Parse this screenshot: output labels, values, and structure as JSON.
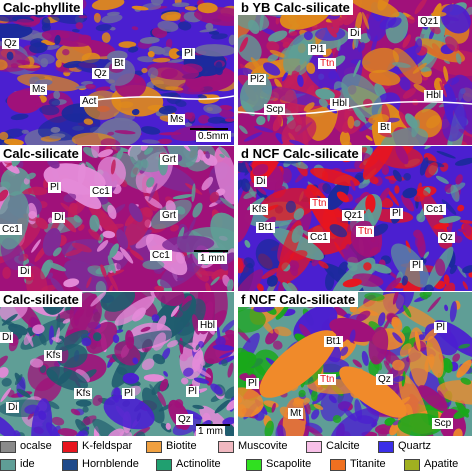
{
  "panels": [
    {
      "id": "a",
      "title": "Calc-phyllite",
      "scale": "0.5mm",
      "labels": [
        {
          "text": "Qz",
          "color": "black"
        },
        {
          "text": "Bt",
          "color": "black"
        },
        {
          "text": "Pl",
          "color": "black"
        },
        {
          "text": "Qz",
          "color": "black"
        },
        {
          "text": "Ms",
          "color": "black"
        },
        {
          "text": "Act",
          "color": "black"
        },
        {
          "text": "Ms",
          "color": "black"
        }
      ],
      "colors": [
        "#4b1fd0",
        "#a0117a",
        "#e08a1a",
        "#1b2a9c",
        "#6e6e9e"
      ]
    },
    {
      "id": "b",
      "title": "YB Calc-silicate",
      "scale": "",
      "labels": [
        {
          "text": "Qz1",
          "color": "black"
        },
        {
          "text": "Di",
          "color": "black"
        },
        {
          "text": "Pl1",
          "color": "black"
        },
        {
          "text": "Ttn",
          "color": "red"
        },
        {
          "text": "Pl2",
          "color": "black"
        },
        {
          "text": "Scp",
          "color": "black"
        },
        {
          "text": "Hbl",
          "color": "black"
        },
        {
          "text": "Hbl",
          "color": "black"
        },
        {
          "text": "Bt",
          "color": "black"
        }
      ],
      "colors": [
        "#a0117a",
        "#5f9e96",
        "#4b1fd0",
        "#e08a1a",
        "#c21e5c"
      ]
    },
    {
      "id": "c",
      "title": "Calc-silicate",
      "scale": "1 mm",
      "labels": [
        {
          "text": "Grt",
          "color": "black"
        },
        {
          "text": "Pl",
          "color": "black"
        },
        {
          "text": "Cc1",
          "color": "black"
        },
        {
          "text": "Di",
          "color": "black"
        },
        {
          "text": "Grt",
          "color": "black"
        },
        {
          "text": "Cc1",
          "color": "black"
        },
        {
          "text": "Cc1",
          "color": "black"
        },
        {
          "text": "Di",
          "color": "black"
        }
      ],
      "colors": [
        "#a0117a",
        "#5f9e96",
        "#c21e5c",
        "#e48ad8",
        "#7e2a96"
      ]
    },
    {
      "id": "d",
      "title": "NCF Calc-silicate",
      "scale": "",
      "labels": [
        {
          "text": "Di",
          "color": "black"
        },
        {
          "text": "Kfs",
          "color": "black"
        },
        {
          "text": "Ttn",
          "color": "red"
        },
        {
          "text": "Qz1",
          "color": "black"
        },
        {
          "text": "Pl",
          "color": "black"
        },
        {
          "text": "Cc1",
          "color": "black"
        },
        {
          "text": "Bt1",
          "color": "black"
        },
        {
          "text": "Cc1",
          "color": "black"
        },
        {
          "text": "Ttn",
          "color": "red"
        },
        {
          "text": "Qz",
          "color": "black"
        },
        {
          "text": "Pl",
          "color": "black"
        }
      ],
      "colors": [
        "#4b1fd0",
        "#a0117a",
        "#5f9e96",
        "#e8151e",
        "#1b2a9c"
      ]
    },
    {
      "id": "e",
      "title": "Calc-silicate",
      "scale": "1 mm",
      "labels": [
        {
          "text": "Di",
          "color": "black"
        },
        {
          "text": "Hbl",
          "color": "black"
        },
        {
          "text": "Kfs",
          "color": "black"
        },
        {
          "text": "Kfs",
          "color": "black"
        },
        {
          "text": "Pl",
          "color": "black"
        },
        {
          "text": "Di",
          "color": "black"
        },
        {
          "text": "Pl",
          "color": "black"
        },
        {
          "text": "Qz",
          "color": "black"
        }
      ],
      "colors": [
        "#5f9e96",
        "#a0117a",
        "#1f5c6e",
        "#4b1fd0",
        "#e48ad8"
      ]
    },
    {
      "id": "f",
      "title": "NCF Calc-silicate",
      "scale": "",
      "labels": [
        {
          "text": "Bt1",
          "color": "black"
        },
        {
          "text": "Pl",
          "color": "black"
        },
        {
          "text": "Pl",
          "color": "black"
        },
        {
          "text": "Ttn",
          "color": "red"
        },
        {
          "text": "Qz",
          "color": "black"
        },
        {
          "text": "Mt",
          "color": "black"
        },
        {
          "text": "Scp",
          "color": "black"
        }
      ],
      "colors": [
        "#5f9e96",
        "#a0117a",
        "#4b1fd0",
        "#f08a2a",
        "#1aa81a"
      ]
    }
  ],
  "legend": [
    {
      "name": "ocalse",
      "color": "#8a8a8a"
    },
    {
      "name": "K-feldspar",
      "color": "#e8151e"
    },
    {
      "name": "Biotite",
      "color": "#f0a040"
    },
    {
      "name": "Muscovite",
      "color": "#f0b8c0"
    },
    {
      "name": "Calcite",
      "color": "#f8c0e8"
    },
    {
      "name": "Quartz",
      "color": "#3a2ee8"
    },
    {
      "name": "ide",
      "color": "#5f9e96"
    },
    {
      "name": "Hornblende",
      "color": "#1f4a8a"
    },
    {
      "name": "Actinolite",
      "color": "#20a070"
    },
    {
      "name": "Scapolite",
      "color": "#30e020"
    },
    {
      "name": "Titanite",
      "color": "#f07020"
    },
    {
      "name": "Apatite",
      "color": "#a0b020"
    }
  ]
}
